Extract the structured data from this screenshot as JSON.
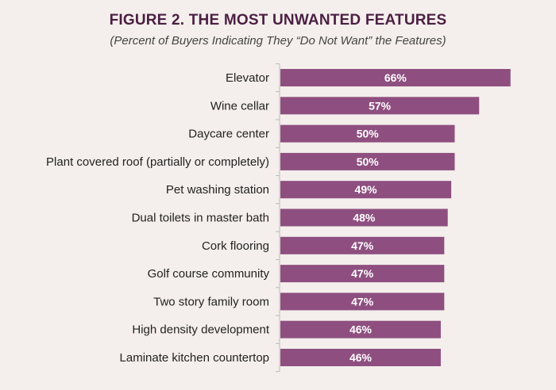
{
  "chart_data": {
    "type": "bar",
    "orientation": "horizontal",
    "title": "FIGURE 2.  THE MOST UNWANTED FEATURES",
    "subtitle": "(Percent of Buyers Indicating They “Do Not Want” the Features)",
    "xlabel": "",
    "ylabel": "",
    "categories": [
      "Elevator",
      "Wine cellar",
      "Daycare center",
      "Plant covered roof (partially or completely)",
      "Pet washing station",
      "Dual toilets in master bath",
      "Cork flooring",
      "Golf course community",
      "Two story family room",
      "High density development",
      "Laminate kitchen countertop"
    ],
    "values": [
      66,
      57,
      50,
      50,
      49,
      48,
      47,
      47,
      47,
      46,
      46
    ],
    "data_labels": [
      "66%",
      "57%",
      "50%",
      "50%",
      "49%",
      "48%",
      "47%",
      "47%",
      "47%",
      "46%",
      "46%"
    ],
    "grid": false,
    "legend": "none",
    "colors": {
      "bar": "#8e4f80",
      "title": "#4b1f43",
      "background": "#f4efec"
    }
  }
}
